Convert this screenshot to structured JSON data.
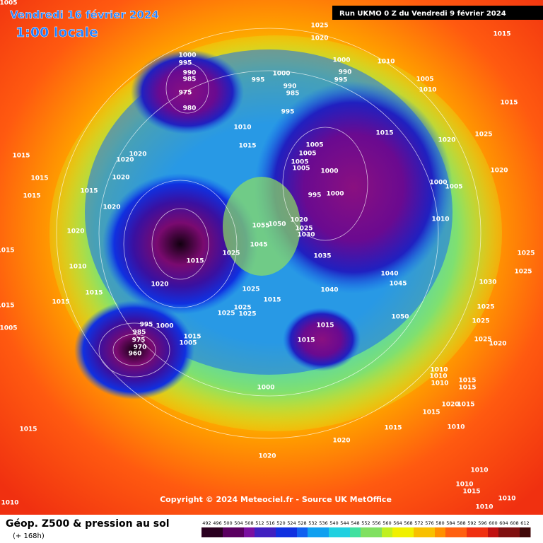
{
  "header": {
    "valid_date": "Vendredi 16 février 2024",
    "local_time": "1:00 locale",
    "run": "Run UKMO 0 Z du Vendredi 9 février 2024"
  },
  "copyright": "Copyright © 2024 Meteociel.fr - Source UK MetOffice",
  "footer": {
    "title": "Géop. Z500 & pression au sol",
    "lead": "(+ 168h)"
  },
  "colorbar": {
    "ticks": [
      492,
      496,
      500,
      504,
      508,
      512,
      516,
      520,
      524,
      528,
      532,
      536,
      540,
      544,
      548,
      552,
      556,
      560,
      564,
      568,
      572,
      576,
      580,
      584,
      588,
      592,
      596,
      600,
      604,
      608,
      612
    ]
  },
  "isobar_labels": [
    1015,
    1025,
    1020,
    1010,
    1000,
    995,
    990,
    985,
    975,
    980,
    995,
    1000,
    990,
    985,
    995,
    1000,
    990,
    995,
    1005,
    1010,
    1015,
    1015,
    1025,
    1020,
    1010,
    1015,
    1020,
    1020,
    1015,
    1020,
    1015,
    1015,
    1015,
    1020,
    1020,
    1015,
    1010,
    1015,
    1015,
    1005,
    1005,
    1005,
    1005,
    1000,
    995,
    1000,
    1000,
    1005,
    1020,
    1010,
    1020,
    1025,
    1030,
    1035,
    1055,
    1050,
    1045,
    1025,
    1015,
    1020,
    1040,
    1045,
    1040,
    1025,
    1015,
    1025,
    1025,
    1025,
    1050,
    1015,
    1015,
    1005,
    1015,
    1005,
    1025,
    1025,
    1030,
    1025,
    1025,
    1025,
    1020,
    995,
    1000,
    985,
    975,
    970,
    960,
    1015,
    1005,
    1000,
    1010,
    1010,
    1010,
    1015,
    1015,
    1020,
    1015,
    1015,
    1015,
    1010,
    1015,
    1020,
    1020,
    1010,
    1010,
    1015,
    1010,
    1010,
    1010
  ]
}
